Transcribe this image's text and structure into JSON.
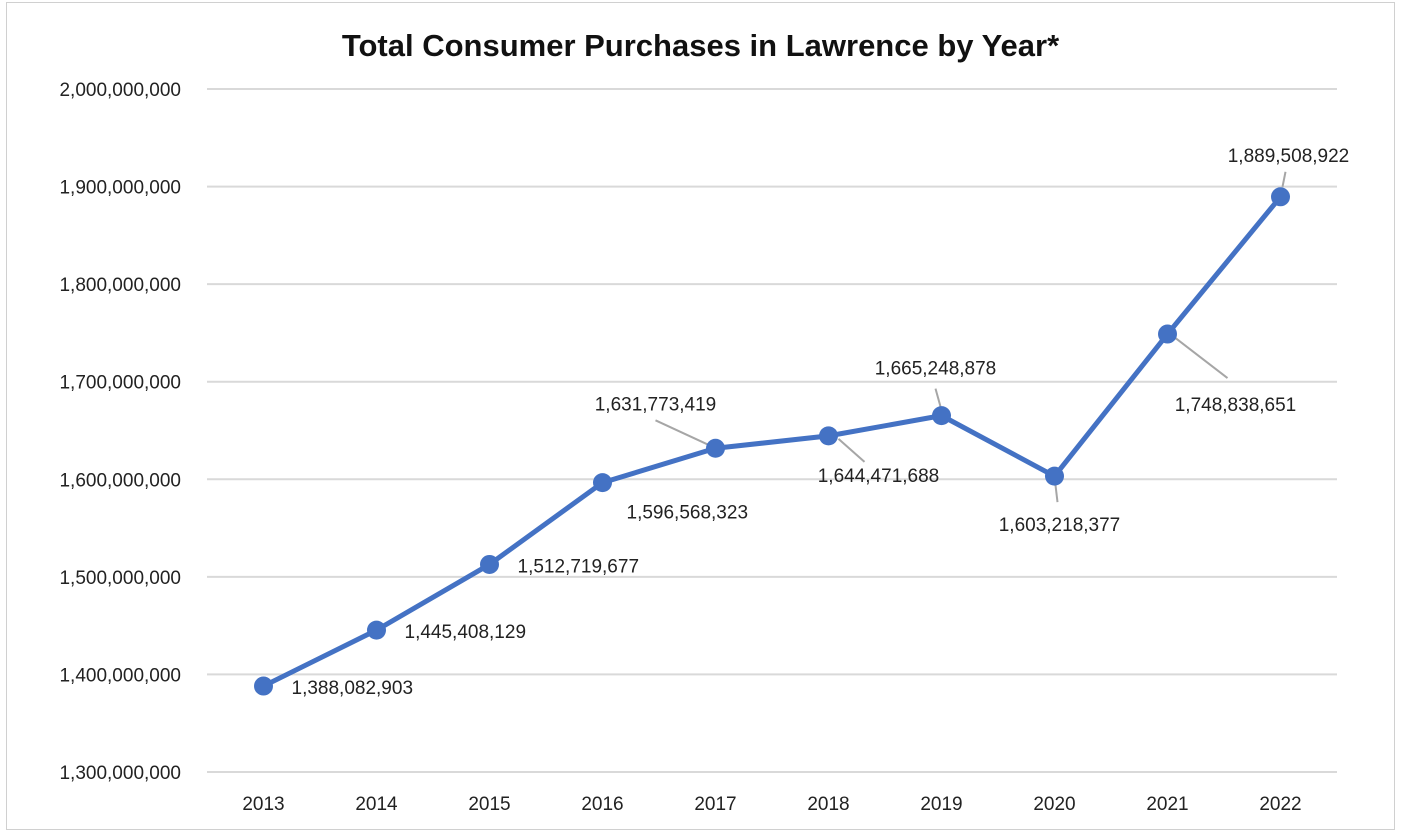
{
  "chart_data": {
    "type": "line",
    "title": "Total Consumer Purchases in Lawrence by Year*",
    "xlabel": "",
    "ylabel": "",
    "categories": [
      "2013",
      "2014",
      "2015",
      "2016",
      "2017",
      "2018",
      "2019",
      "2020",
      "2021",
      "2022"
    ],
    "series": [
      {
        "values": [
          1388082903,
          1445408129,
          1512719677,
          1596568323,
          1631773419,
          1644471688,
          1665248878,
          1603218377,
          1748838651,
          1889508922
        ],
        "labels": [
          "1,388,082,903",
          "1,445,408,129",
          "1,512,719,677",
          "1,596,568,323",
          "1,631,773,419",
          "1,644,471,688",
          "1,665,248,878",
          "1,603,218,377",
          "1,748,838,651",
          "1,889,508,922"
        ]
      }
    ],
    "ylim": [
      1300000000,
      2000000000
    ],
    "yticks": [
      {
        "value": 1300000000,
        "label": "1,300,000,000"
      },
      {
        "value": 1400000000,
        "label": "1,400,000,000"
      },
      {
        "value": 1500000000,
        "label": "1,500,000,000"
      },
      {
        "value": 1600000000,
        "label": "1,600,000,000"
      },
      {
        "value": 1700000000,
        "label": "1,700,000,000"
      },
      {
        "value": 1800000000,
        "label": "1,800,000,000"
      },
      {
        "value": 1900000000,
        "label": "1,900,000,000"
      },
      {
        "value": 2000000000,
        "label": "2,000,000,000"
      }
    ],
    "grid": true,
    "legend": "none",
    "colors": {
      "line": "#4472c4",
      "grid": "#d9d9d9",
      "leader": "#a6a6a6",
      "text": "#222222"
    }
  }
}
